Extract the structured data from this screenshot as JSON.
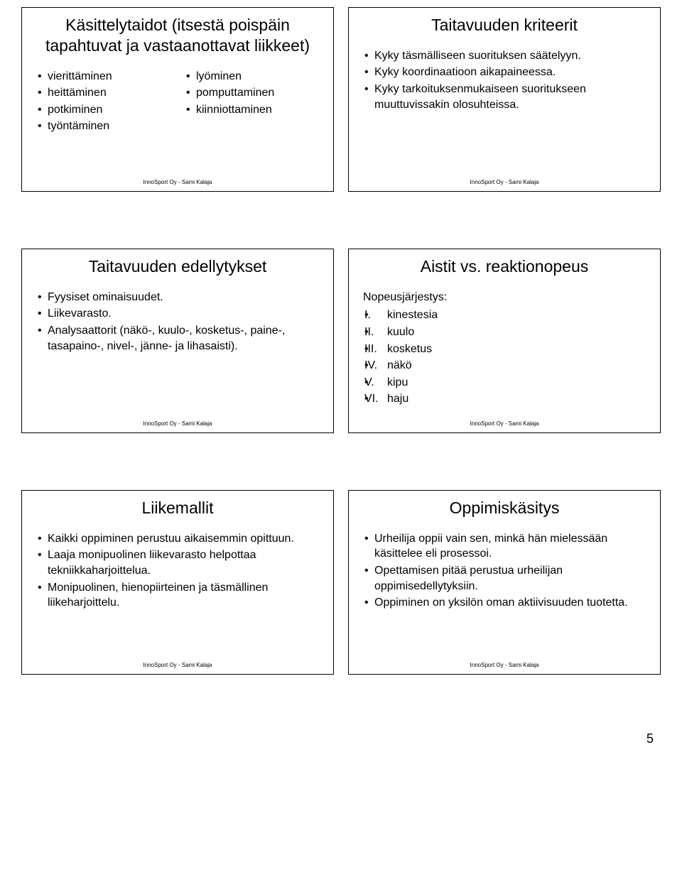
{
  "footer": "InnoSport Oy - Sami Kalaja",
  "pagenum": "5",
  "slides": {
    "s1": {
      "title": "Käsittelytaidot (itsestä poispäin tapahtuvat ja vastaanottavat liikkeet)",
      "left": [
        "vierittäminen",
        "heittäminen",
        "potkiminen",
        "työntäminen"
      ],
      "right": [
        "lyöminen",
        "pomputtaminen",
        "kiinniottaminen"
      ]
    },
    "s2": {
      "title": "Taitavuuden kriteerit",
      "items": [
        "Kyky täsmälliseen suorituksen säätelyyn.",
        "Kyky koordinaatioon aikapaineessa.",
        "Kyky tarkoituksenmukaiseen suoritukseen muuttuvissakin olosuhteissa."
      ]
    },
    "s3": {
      "title": "Taitavuuden edellytykset",
      "items": [
        "Fyysiset ominaisuudet.",
        "Liikevarasto.",
        "Analysaattorit (näkö-, kuulo-, kosketus-, paine-, tasapaino-, nivel-, jänne- ja lihasaisti)."
      ]
    },
    "s4": {
      "title": "Aistit vs. reaktionopeus",
      "intro": "Nopeusjärjestys:",
      "ordered": [
        {
          "n": "I.",
          "t": "kinestesia"
        },
        {
          "n": "II.",
          "t": "kuulo"
        },
        {
          "n": "III.",
          "t": "kosketus"
        },
        {
          "n": "IV.",
          "t": "näkö"
        },
        {
          "n": "V.",
          "t": "kipu"
        },
        {
          "n": "VI.",
          "t": "haju"
        }
      ]
    },
    "s5": {
      "title": "Liikemallit",
      "items": [
        "Kaikki oppiminen perustuu aikaisemmin opittuun.",
        "Laaja monipuolinen liikevarasto helpottaa tekniikkaharjoittelua.",
        "Monipuolinen, hienopiirteinen ja täsmällinen liikeharjoittelu."
      ]
    },
    "s6": {
      "title": "Oppimiskäsitys",
      "items": [
        "Urheilija oppii vain sen, minkä hän mielessään käsittelee eli prosessoi.",
        "Opettamisen pitää perustua urheilijan oppimisedellytyksiin.",
        "Oppiminen on yksilön oman aktiivisuuden tuotetta."
      ]
    }
  }
}
